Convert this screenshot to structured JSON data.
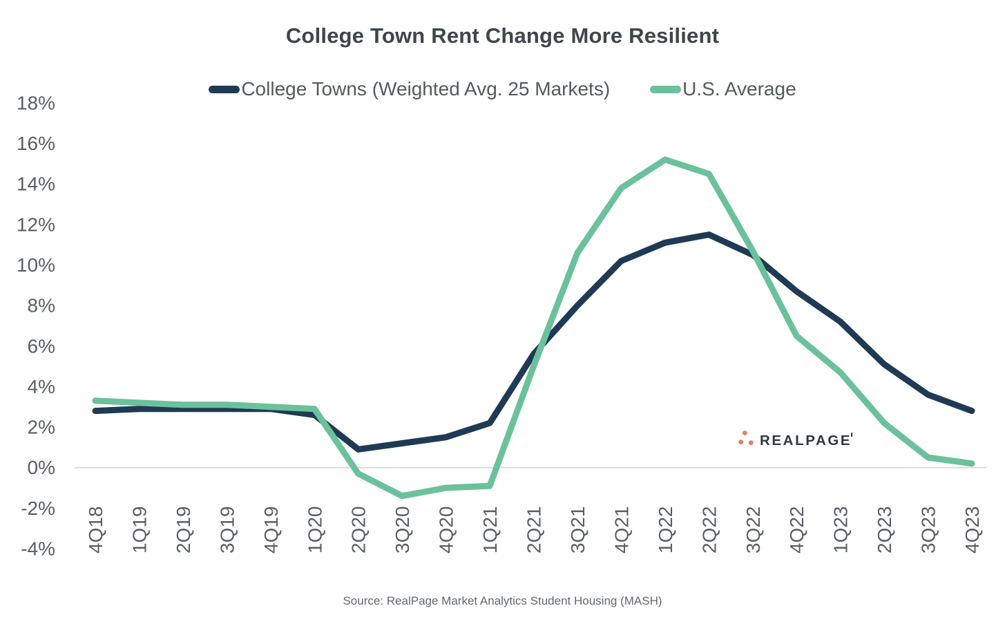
{
  "title": "College Town Rent Change More Resilient",
  "legend": [
    {
      "label": "College Towns (Weighted Avg. 25 Markets)",
      "color": "#1F3A55"
    },
    {
      "label": "U.S. Average",
      "color": "#6BC19C"
    }
  ],
  "logo": {
    "text": "REALPAGE",
    "dot_color": "#E87B5B",
    "text_color": "#32373D"
  },
  "source": "Source: RealPage Market Analytics Student Housing (MASH)",
  "chart_data": {
    "type": "line",
    "title": "College Town Rent Change More Resilient",
    "categories": [
      "4Q18",
      "1Q19",
      "2Q19",
      "3Q19",
      "4Q19",
      "1Q20",
      "2Q20",
      "3Q20",
      "4Q20",
      "1Q21",
      "2Q21",
      "3Q21",
      "4Q21",
      "1Q22",
      "2Q22",
      "3Q22",
      "4Q22",
      "1Q23",
      "2Q23",
      "3Q23",
      "4Q23"
    ],
    "series": [
      {
        "name": "College Towns (Weighted Avg. 25 Markets)",
        "color": "#1F3A55",
        "values": [
          2.8,
          2.9,
          2.9,
          2.9,
          2.9,
          2.6,
          0.9,
          1.2,
          1.5,
          2.2,
          5.6,
          8.0,
          10.2,
          11.1,
          11.5,
          10.5,
          8.7,
          7.2,
          5.1,
          3.6,
          2.8
        ]
      },
      {
        "name": "U.S. Average",
        "color": "#6BC19C",
        "values": [
          3.3,
          3.2,
          3.1,
          3.1,
          3.0,
          2.9,
          -0.3,
          -1.4,
          -1.0,
          -0.9,
          5.0,
          10.6,
          13.8,
          15.2,
          14.5,
          10.7,
          6.5,
          4.7,
          2.2,
          0.5,
          0.2
        ]
      }
    ],
    "xlabel": "",
    "ylabel": "",
    "y_ticks": [
      "18%",
      "16%",
      "14%",
      "12%",
      "10%",
      "8%",
      "6%",
      "4%",
      "2%",
      "0%",
      "-2%",
      "-4%"
    ],
    "ylim": [
      -4,
      18
    ],
    "grid": "zero-line-only",
    "grid_color": "#DBDBDB",
    "tick_color": "#5A5E63",
    "legend_position": "top",
    "x_tick_rotation": -90
  }
}
